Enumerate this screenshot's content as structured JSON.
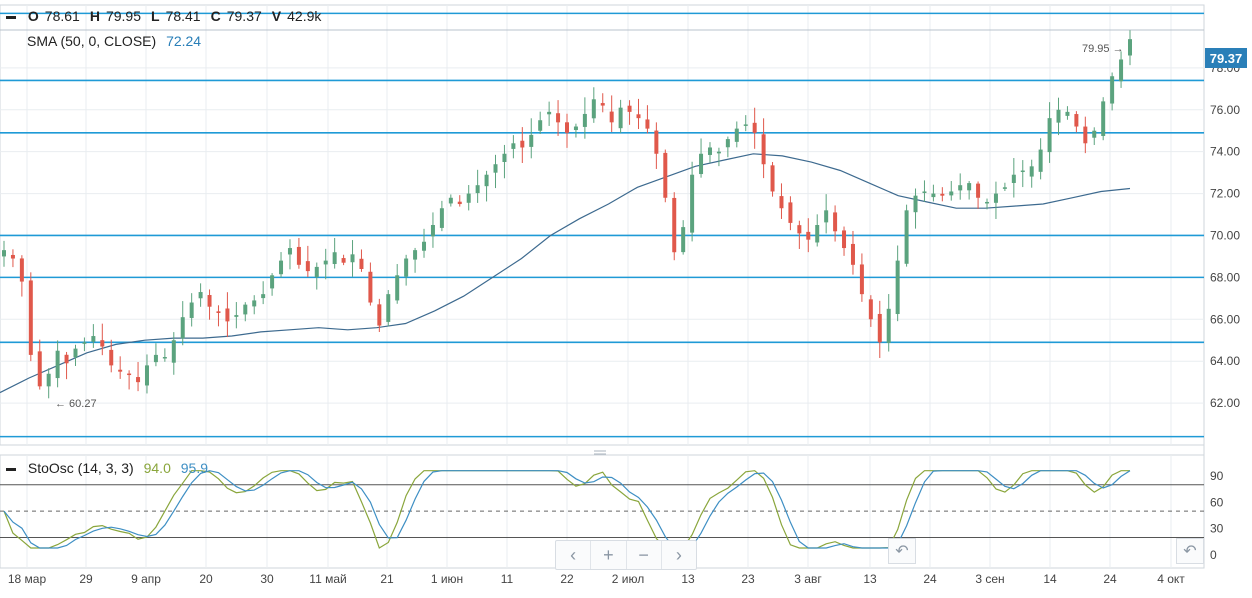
{
  "legend": {
    "ohlc": [
      {
        "key": "O",
        "value": "78.61"
      },
      {
        "key": "H",
        "value": "79.95"
      },
      {
        "key": "L",
        "value": "78.41"
      },
      {
        "key": "C",
        "value": "79.37"
      },
      {
        "key": "V",
        "value": "42.9k"
      }
    ],
    "sma_label": "SMA (50, 0, CLOSE)",
    "sma_value": "72.24",
    "sto_label": "StoOsc (14, 3, 3)",
    "sto_k": "94.0",
    "sto_d": "95.9"
  },
  "price_badge": "79.37",
  "high_marker": "79.95 →",
  "low_marker": "← 60.27",
  "nav": {
    "left": "‹",
    "zoom_in": "+",
    "zoom_out": "−",
    "right": "›",
    "reset": "↶"
  },
  "colors": {
    "up": "#5ba37e",
    "down": "#e0584b",
    "line": "#1f9ad6",
    "sma": "#3d6a8f",
    "k": "#8aa63c",
    "d": "#3e8fc4",
    "grid": "#e9edf0"
  },
  "chart_data": {
    "type": "candlestick",
    "ylim": [
      60,
      81
    ],
    "y_ticks": [
      "62.00",
      "64.00",
      "66.00",
      "68.00",
      "70.00",
      "72.00",
      "74.00",
      "76.00",
      "78.00"
    ],
    "x_ticks": [
      "18 мар",
      "29",
      "9 апр",
      "20",
      "30",
      "11 май",
      "21",
      "1 июн",
      "11",
      "22",
      "2 июл",
      "13",
      "23",
      "3 авг",
      "13",
      "24",
      "3 сен",
      "14",
      "24",
      "4 окт"
    ],
    "horizontal_levels": [
      80.6,
      77.4,
      74.9,
      70.0,
      68.0,
      64.9,
      60.4
    ],
    "close_path": [
      69.3,
      68.9,
      67.8,
      64.3,
      62.8,
      63.4,
      64.5,
      63.9,
      64.6,
      64.9,
      65.2,
      64.7,
      63.8,
      63.5,
      63.4,
      63.0,
      63.8,
      64.3,
      64.2,
      65.0,
      66.1,
      66.8,
      67.3,
      66.6,
      66.3,
      65.9,
      66.2,
      66.7,
      66.9,
      67.2,
      68.1,
      68.8,
      69.4,
      68.6,
      68.3,
      68.5,
      68.8,
      69.2,
      68.7,
      69.1,
      68.4,
      66.8,
      65.7,
      67.2,
      68.1,
      68.9,
      69.3,
      69.7,
      70.5,
      71.3,
      71.8,
      71.5,
      72.0,
      72.4,
      72.9,
      73.4,
      73.9,
      74.4,
      74.2,
      74.8,
      75.5,
      75.9,
      75.4,
      74.9,
      75.2,
      75.8,
      76.5,
      76.2,
      75.4,
      76.1,
      75.9,
      75.6,
      75.1,
      73.9,
      71.8,
      69.2,
      70.4,
      72.9,
      73.9,
      74.2,
      74.0,
      74.6,
      75.1,
      75.3,
      74.9,
      73.4,
      72.1,
      71.3,
      70.6,
      70.1,
      69.8,
      70.5,
      71.2,
      70.2,
      69.4,
      68.6,
      67.2,
      66.0,
      64.9,
      66.5,
      68.8,
      71.2,
      71.9,
      72.1,
      72.0,
      71.9,
      72.1,
      72.4,
      72.5,
      71.8,
      71.6,
      72.0,
      72.3,
      72.9,
      73.1,
      73.3,
      74.1,
      75.6,
      76.0,
      75.9,
      75.2,
      74.4,
      75.0,
      76.4,
      77.6,
      78.4,
      79.37
    ],
    "sma_series": [
      62.5,
      63.2,
      63.8,
      64.4,
      64.8,
      65.0,
      65.1,
      65.1,
      65.2,
      65.4,
      65.5,
      65.6,
      65.5,
      65.6,
      65.8,
      66.4,
      67.1,
      68.0,
      68.9,
      70.0,
      70.8,
      71.5,
      72.3,
      72.8,
      73.3,
      73.6,
      73.9,
      73.8,
      73.5,
      73.1,
      72.5,
      71.9,
      71.6,
      71.3,
      71.3,
      71.4,
      71.5,
      71.8,
      72.1,
      72.24
    ],
    "indicator": {
      "name": "StoOsc",
      "levels": [
        80,
        50,
        20
      ],
      "y_ticks": [
        "90",
        "60",
        "30",
        "0"
      ],
      "ylim": [
        0,
        100
      ]
    }
  }
}
